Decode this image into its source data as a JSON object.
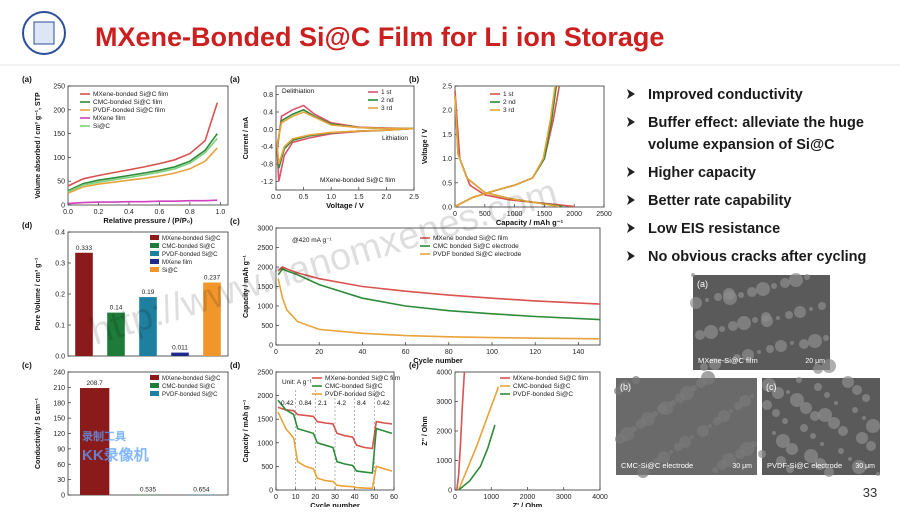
{
  "header": {
    "title": "MXene-Bonded Si@C Film for Li ion Storage"
  },
  "bullets": [
    [
      "Improved conductivity"
    ],
    [
      "Buffer effect: alleviate the huge",
      "volume expansion of Si@C"
    ],
    [
      "Higher capacity"
    ],
    [
      "Better rate capability"
    ],
    [
      "Low EIS resistance"
    ],
    [
      "No obvious cracks after cycling"
    ]
  ],
  "images": [
    {
      "label": "(a)",
      "caption": "MXene-Si@C film",
      "scale": "20 μm"
    },
    {
      "label": "(b)",
      "caption": "CMC-Si@C electrode",
      "scale": "30 μm"
    },
    {
      "label": "(c)",
      "caption": "PVDF-Si@C electrode",
      "scale": "30 μm"
    }
  ],
  "watermark": "http://www.nanomxenes.com",
  "recorder": [
    "录制工具",
    "KK录像机"
  ],
  "page_number": "33",
  "chart_data": [
    {
      "type": "line",
      "label": "(a)",
      "x_label": "Relative pressure / (P/P₀)",
      "y_label": "Volume absorbed / cm³ g⁻¹, STP",
      "xlim": [
        0,
        1.05
      ],
      "ylim": [
        0,
        250
      ],
      "xticks": [
        {
          "value": 0,
          "label": "0.0"
        },
        0.2,
        0.4,
        0.6,
        0.8,
        {
          "value": 1,
          "label": "1.0"
        }
      ],
      "yticks": [
        0,
        50,
        100,
        150,
        200,
        250
      ],
      "x": [
        0,
        0.1,
        0.2,
        0.3,
        0.4,
        0.5,
        0.6,
        0.7,
        0.8,
        0.9,
        0.98
      ],
      "series": [
        {
          "name": "MXene-bonded Si@C film",
          "color": "#d9534f",
          "values": [
            40,
            55,
            62,
            68,
            74,
            80,
            87,
            95,
            108,
            135,
            215
          ]
        },
        {
          "name": "CMC-bonded Si@C film",
          "color": "#2e8b3a",
          "values": [
            30,
            45,
            52,
            57,
            62,
            67,
            73,
            80,
            92,
            115,
            150
          ]
        },
        {
          "name": "PVDF-bonded Si@C film",
          "color": "#e8a33a",
          "values": [
            25,
            38,
            44,
            48,
            52,
            56,
            61,
            67,
            76,
            92,
            120
          ]
        },
        {
          "name": "MXene film",
          "color": "#d040c0",
          "values": [
            3,
            5,
            6,
            6,
            7,
            7,
            8,
            8,
            9,
            9,
            10
          ]
        },
        {
          "name": "Si@C",
          "color": "#7fd07f",
          "values": [
            28,
            42,
            48,
            53,
            58,
            63,
            69,
            76,
            88,
            110,
            140
          ]
        }
      ]
    },
    {
      "type": "line",
      "label": "(a)",
      "x_label": "Voltage / V",
      "y_label": "Current / mA",
      "xlim": [
        0,
        2.5
      ],
      "ylim": [
        -1.4,
        1
      ],
      "xticks": [
        {
          "value": 0,
          "label": "0.0"
        },
        0.5,
        {
          "value": 1,
          "label": "1.0"
        },
        1.5,
        {
          "value": 2,
          "label": "2.0"
        },
        2.5
      ],
      "yticks": [
        -1.2,
        -0.8,
        -0.4,
        {
          "value": 0,
          "label": "0.0"
        },
        0.4,
        0.8
      ],
      "annotations": [
        "Delithiation",
        "Lithiation",
        "MXene-bonded Si@C film"
      ],
      "series": [
        {
          "name": "1 st",
          "color": "#e0506a",
          "x": [
            0.02,
            0.1,
            0.3,
            0.5,
            0.7,
            1,
            1.5,
            2,
            2.5,
            2,
            1.5,
            1,
            0.6,
            0.3,
            0.15,
            0.05,
            0.02
          ],
          "values": [
            -0.5,
            0.3,
            0.45,
            0.55,
            0.35,
            0.15,
            0.05,
            0.03,
            0.02,
            -0.02,
            -0.05,
            -0.1,
            -0.2,
            -0.3,
            -0.6,
            -1.2,
            -0.5
          ]
        },
        {
          "name": "2 nd",
          "color": "#2e8b3a",
          "x": [
            0.02,
            0.1,
            0.3,
            0.5,
            0.7,
            1,
            1.5,
            2,
            2.5,
            2,
            1.5,
            1,
            0.6,
            0.3,
            0.15,
            0.05,
            0.02
          ],
          "values": [
            -0.4,
            0.2,
            0.35,
            0.45,
            0.3,
            0.12,
            0.04,
            0.02,
            0.02,
            -0.02,
            -0.04,
            -0.08,
            -0.15,
            -0.25,
            -0.45,
            -0.9,
            -0.4
          ]
        },
        {
          "name": "3 rd",
          "color": "#e8a33a",
          "x": [
            0.02,
            0.1,
            0.3,
            0.5,
            0.7,
            1,
            1.5,
            2,
            2.5,
            2,
            1.5,
            1,
            0.6,
            0.3,
            0.15,
            0.05,
            0.02
          ],
          "values": [
            -0.35,
            0.15,
            0.3,
            0.4,
            0.28,
            0.1,
            0.04,
            0.02,
            0.02,
            -0.02,
            -0.04,
            -0.07,
            -0.13,
            -0.22,
            -0.4,
            -0.8,
            -0.35
          ]
        }
      ]
    },
    {
      "type": "line",
      "label": "(b)",
      "x_label": "Capacity / mAh g⁻¹",
      "y_label": "Voltage / V",
      "xlim": [
        0,
        2500
      ],
      "ylim": [
        0,
        2.5
      ],
      "xticks": [
        0,
        500,
        1000,
        1500,
        2000,
        2500
      ],
      "yticks": [
        {
          "value": 0,
          "label": "0.0"
        },
        0.5,
        {
          "value": 1,
          "label": "1.0"
        },
        1.5,
        {
          "value": 2,
          "label": "2.0"
        },
        2.5
      ],
      "series": [
        {
          "name": "1 st",
          "color": "#d9534f",
          "x": [
            0,
            80,
            250,
            500,
            900,
            1300,
            1700,
            2000,
            null,
            0,
            300,
            700,
            1000,
            1300,
            1500,
            1650,
            1750
          ],
          "values": [
            2.4,
            1,
            0.45,
            0.25,
            0.15,
            0.1,
            0.05,
            0.01,
            null,
            0.01,
            0.2,
            0.35,
            0.45,
            0.6,
            1,
            1.8,
            2.5
          ]
        },
        {
          "name": "2 nd",
          "color": "#2e8b3a",
          "x": [
            0,
            50,
            200,
            500,
            900,
            1300,
            1600,
            1800,
            null,
            0,
            300,
            700,
            1000,
            1300,
            1500,
            1620,
            1700
          ],
          "values": [
            2.3,
            1.1,
            0.6,
            0.3,
            0.18,
            0.1,
            0.05,
            0.01,
            null,
            0.01,
            0.2,
            0.35,
            0.45,
            0.6,
            1,
            1.8,
            2.5
          ]
        },
        {
          "name": "3 rd",
          "color": "#e8a33a",
          "x": [
            0,
            50,
            200,
            500,
            900,
            1300,
            1550,
            1750,
            null,
            0,
            300,
            700,
            1000,
            1300,
            1480,
            1600,
            1680
          ],
          "values": [
            2.3,
            1.1,
            0.6,
            0.3,
            0.18,
            0.1,
            0.05,
            0.01,
            null,
            0.01,
            0.2,
            0.35,
            0.45,
            0.6,
            1,
            1.8,
            2.5
          ]
        }
      ]
    },
    {
      "type": "bar",
      "label": "(d)",
      "y_label": "Pore Volume / cm³ g⁻¹",
      "ylim": [
        0,
        0.4
      ],
      "yticks": [
        {
          "value": 0,
          "label": "0.0"
        },
        0.1,
        0.2,
        0.3,
        0.4
      ],
      "categories": [
        "MXene-bonded Si@C",
        "CMC-bonded Si@C",
        "PVDF-bonded Si@C",
        "MXene film",
        "Si@C"
      ],
      "colors": [
        "#8b1a1a",
        "#1e7b3a",
        "#1f7f9e",
        "#1f2a8c",
        "#f0962a"
      ],
      "values": [
        0.333,
        0.14,
        0.19,
        0.011,
        0.237
      ]
    },
    {
      "type": "line",
      "label": "(c)",
      "x_label": "Cycle number",
      "y_label": "Capacity / mAh g⁻¹",
      "xlim": [
        0,
        150
      ],
      "ylim": [
        0,
        3000
      ],
      "xticks": [
        0,
        20,
        40,
        60,
        80,
        100,
        120,
        140
      ],
      "yticks": [
        0,
        500,
        1000,
        1500,
        2000,
        2500,
        3000
      ],
      "annotations": [
        "@420 mA g⁻¹"
      ],
      "x": [
        1,
        3,
        5,
        10,
        20,
        40,
        60,
        80,
        100,
        120,
        150
      ],
      "series": [
        {
          "name": "MXene bonded Si@C film",
          "color": "#d9534f",
          "values": [
            1900,
            2000,
            1950,
            1850,
            1700,
            1500,
            1380,
            1280,
            1200,
            1130,
            1050
          ]
        },
        {
          "name": "CMC bonded Si@C  electrode",
          "color": "#2e8b3a",
          "values": [
            1800,
            1950,
            1900,
            1800,
            1550,
            1200,
            1000,
            880,
            800,
            730,
            650
          ]
        },
        {
          "name": "PVDF bonded Si@C electrode",
          "color": "#e8a33a",
          "values": [
            1700,
            1200,
            900,
            600,
            400,
            300,
            240,
            210,
            190,
            175,
            160
          ]
        }
      ]
    },
    {
      "type": "bar",
      "label": "(c)",
      "y_label": "Conductivity / S cm⁻¹",
      "ylim": [
        0,
        240
      ],
      "yticks": [
        0,
        30,
        60,
        90,
        120,
        150,
        180,
        210,
        240
      ],
      "categories": [
        "MXene-bonded Si@C",
        "CMC-bonded Si@C",
        "PVDF-bonded Si@C"
      ],
      "colors": [
        "#8b1a1a",
        "#1e7b3a",
        "#1f7f9e"
      ],
      "values": [
        208.7,
        0.535,
        0.654
      ]
    },
    {
      "type": "line",
      "label": "(d)",
      "x_label": "Cycle number",
      "y_label": "Capacity / mAh g⁻¹",
      "xlim": [
        0,
        60
      ],
      "ylim": [
        0,
        2500
      ],
      "xticks": [
        0,
        10,
        20,
        30,
        40,
        50,
        60
      ],
      "yticks": [
        0,
        500,
        1000,
        1500,
        2000,
        2500
      ],
      "annotations": [
        "Unit: A g⁻¹",
        "0.42",
        "0.84",
        "2.1",
        "4.2",
        "8.4",
        "0.42"
      ],
      "x": [
        1,
        5,
        9,
        11,
        15,
        19,
        21,
        25,
        29,
        31,
        35,
        39,
        41,
        45,
        49,
        51,
        55,
        59
      ],
      "series": [
        {
          "name": "MXene-bonded Si@C film",
          "color": "#d9534f",
          "values": [
            1750,
            1700,
            1680,
            1600,
            1580,
            1560,
            1450,
            1420,
            1400,
            1200,
            1150,
            1120,
            950,
            900,
            880,
            1450,
            1420,
            1400
          ]
        },
        {
          "name": "CMC-bonded Si@C",
          "color": "#2e8b3a",
          "values": [
            1900,
            1700,
            1600,
            1300,
            1250,
            1200,
            1000,
            950,
            900,
            600,
            550,
            520,
            400,
            380,
            360,
            1300,
            1250,
            1200
          ]
        },
        {
          "name": "PVDF-bonded Si@C",
          "color": "#e8a33a",
          "values": [
            1650,
            1300,
            1100,
            600,
            500,
            450,
            250,
            200,
            180,
            100,
            80,
            70,
            50,
            40,
            35,
            500,
            450,
            400
          ]
        }
      ]
    },
    {
      "type": "line",
      "label": "(e)",
      "x_label": "Z' / Ohm",
      "y_label": "Z'' / Ohm",
      "xlim": [
        0,
        4000
      ],
      "ylim": [
        0,
        4000
      ],
      "xticks": [
        0,
        1000,
        2000,
        3000,
        4000
      ],
      "yticks": [
        0,
        1000,
        2000,
        3000,
        4000
      ],
      "series": [
        {
          "name": "MXene-bonded Si@C film",
          "color": "#d9534f",
          "x": [
            50,
            100,
            150,
            200,
            260
          ],
          "values": [
            0,
            500,
            1500,
            2800,
            4000
          ]
        },
        {
          "name": "CMC-bonded Si@C",
          "color": "#e8a33a",
          "x": [
            100,
            300,
            600,
            900,
            1200
          ],
          "values": [
            0,
            600,
            1500,
            2500,
            3500
          ]
        },
        {
          "name": "PVDF-bonded Si@C",
          "color": "#2e8b3a",
          "x": [
            100,
            400,
            700,
            900,
            1100
          ],
          "values": [
            0,
            300,
            800,
            1400,
            2200
          ]
        }
      ]
    }
  ]
}
